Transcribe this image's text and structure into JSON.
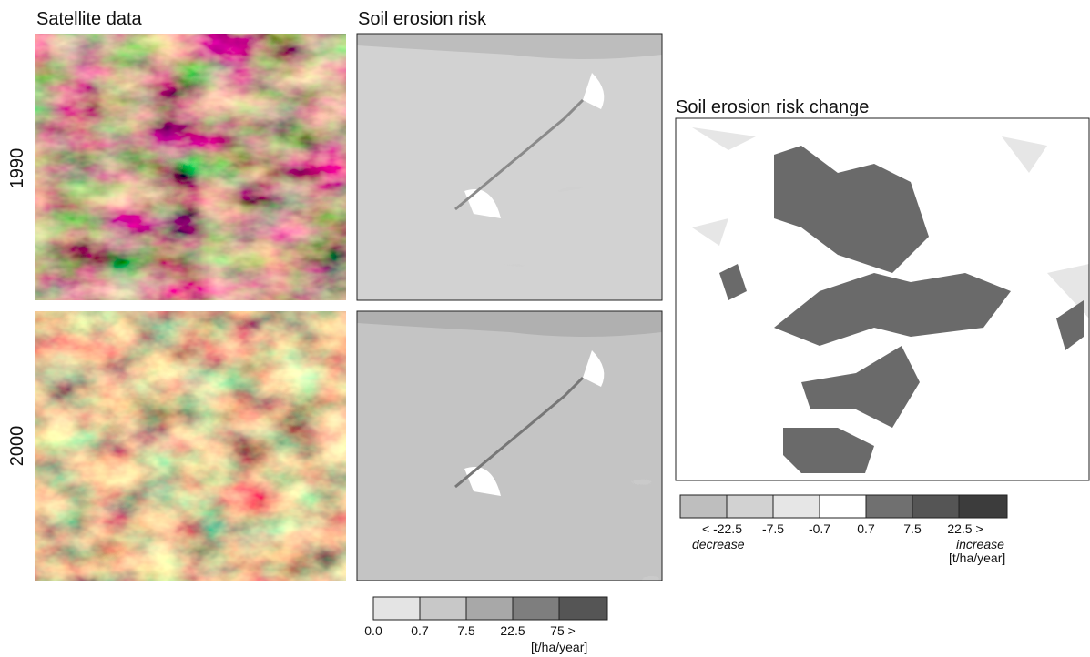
{
  "panels": {
    "satellite_title": "Satellite data",
    "erosion_title": "Soil erosion risk",
    "change_title": "Soil erosion risk change"
  },
  "rows": [
    "1990",
    "2000"
  ],
  "erosion_legend": {
    "labels": [
      "0.0",
      "0.7",
      "7.5",
      "22.5",
      "75 >"
    ],
    "unit": "[t/ha/year]"
  },
  "change_legend": {
    "labels": [
      "< -22.5",
      "-7.5",
      "-0.7",
      "0.7",
      "7.5",
      "22.5 >"
    ],
    "decrease": "decrease",
    "increase": "increase",
    "unit": "[t/ha/year]"
  }
}
